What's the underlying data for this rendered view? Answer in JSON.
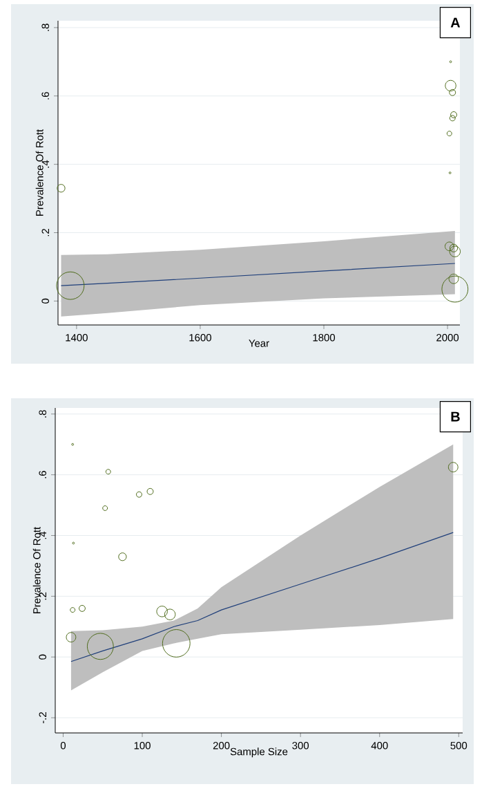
{
  "chart_data": [
    {
      "type": "bubble",
      "xlabel": "Year",
      "ylabel": "Prevalence Of Rott",
      "annotations": [
        "A"
      ],
      "xlim": [
        1370,
        2020
      ],
      "ylim": [
        -0.07,
        0.82
      ],
      "xticks": [
        1400,
        1600,
        1800,
        2000
      ],
      "yticks": [
        {
          "value": 0,
          "label": "0"
        },
        {
          "value": 0.2,
          "label": ".2"
        },
        {
          "value": 0.4,
          "label": ".4"
        },
        {
          "value": 0.6,
          "label": ".6"
        },
        {
          "value": 0.8,
          "label": ".8"
        }
      ],
      "grid": "y",
      "series": [
        {
          "color": "#4f6b1c",
          "x": [
            1375,
            1390,
            2005,
            2005,
            2008,
            2010,
            2008,
            2003,
            2004,
            2003,
            2010,
            2012,
            2010,
            2012
          ],
          "values": [
            0.33,
            0.045,
            0.7,
            0.63,
            0.61,
            0.545,
            0.535,
            0.49,
            0.375,
            0.16,
            0.155,
            0.145,
            0.065,
            0.035
          ],
          "sizes": [
            0.08,
            1.0,
            0.005,
            0.15,
            0.05,
            0.05,
            0.04,
            0.03,
            0.005,
            0.1,
            0.08,
            0.15,
            0.12,
            0.9
          ]
        },
        {
          "type": "line",
          "color": "#1f3f7a",
          "x": [
            1375,
            1450,
            1600,
            1800,
            2012
          ],
          "values": [
            0.045,
            0.052,
            0.067,
            0.088,
            0.11
          ],
          "lower": [
            -0.045,
            -0.035,
            -0.012,
            0.008,
            0.02
          ],
          "upper": [
            0.135,
            0.137,
            0.15,
            0.175,
            0.205
          ]
        }
      ]
    },
    {
      "type": "bubble",
      "xlabel": "Sample Size",
      "ylabel": "Prevalence Of Rott",
      "annotations": [
        "B"
      ],
      "xlim": [
        -10,
        505
      ],
      "ylim": [
        -0.25,
        0.82
      ],
      "xticks": [
        0,
        100,
        200,
        300,
        400,
        500
      ],
      "yticks": [
        {
          "value": -0.2,
          "label": "-.2"
        },
        {
          "value": 0,
          "label": "0"
        },
        {
          "value": 0.2,
          "label": ".2"
        },
        {
          "value": 0.4,
          "label": ".4"
        },
        {
          "value": 0.6,
          "label": ".6"
        },
        {
          "value": 0.8,
          "label": ".8"
        }
      ],
      "grid": "y",
      "series": [
        {
          "color": "#4f6b1c",
          "x": [
            12,
            57,
            110,
            96,
            53,
            13,
            75,
            12,
            24,
            125,
            135,
            10,
            47,
            143,
            493
          ],
          "values": [
            0.7,
            0.61,
            0.545,
            0.535,
            0.49,
            0.375,
            0.33,
            0.155,
            0.16,
            0.15,
            0.14,
            0.065,
            0.035,
            0.045,
            0.625
          ],
          "sizes": [
            0.005,
            0.03,
            0.05,
            0.04,
            0.03,
            0.005,
            0.08,
            0.03,
            0.05,
            0.15,
            0.15,
            0.12,
            0.9,
            1.0,
            0.12
          ]
        },
        {
          "type": "line",
          "color": "#1f3f7a",
          "x": [
            10,
            50,
            100,
            140,
            170,
            200,
            300,
            400,
            493
          ],
          "values": [
            -0.015,
            0.02,
            0.06,
            0.1,
            0.12,
            0.155,
            0.24,
            0.325,
            0.41
          ],
          "lower": [
            -0.11,
            -0.05,
            0.02,
            0.045,
            0.06,
            0.075,
            0.09,
            0.105,
            0.125
          ],
          "upper": [
            0.085,
            0.088,
            0.1,
            0.12,
            0.16,
            0.23,
            0.4,
            0.56,
            0.7
          ]
        }
      ]
    }
  ]
}
